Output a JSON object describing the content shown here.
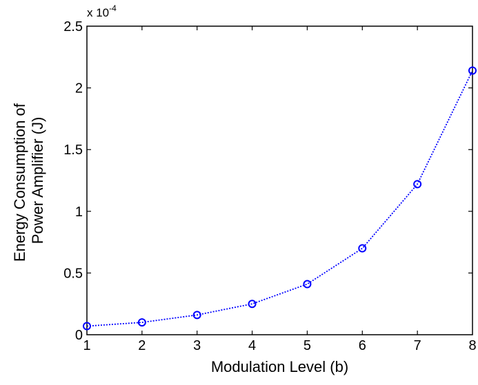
{
  "chart_data": {
    "type": "line",
    "title": "",
    "xlabel": "Modulation Level (b)",
    "ylabel_lines": [
      "Energy Consumption of",
      "Power Amplifier (J)"
    ],
    "y_scale_base": "x 10",
    "y_scale_exponent": "-4",
    "xlim": [
      1,
      8
    ],
    "ylim": [
      0,
      2.5
    ],
    "x_ticks": [
      1,
      2,
      3,
      4,
      5,
      6,
      7,
      8
    ],
    "x_tick_labels": [
      "1",
      "2",
      "3",
      "4",
      "5",
      "6",
      "7",
      "8"
    ],
    "y_ticks": [
      0,
      0.5,
      1,
      1.5,
      2,
      2.5
    ],
    "y_tick_labels": [
      "0",
      "0.5",
      "1",
      "1.5",
      "2",
      "2.5"
    ],
    "grid": false,
    "series": [
      {
        "color": "#0000ff",
        "line_style": "dotted",
        "marker": "circle",
        "x": [
          1,
          2,
          3,
          4,
          5,
          6,
          7,
          8
        ],
        "y": [
          0.07,
          0.1,
          0.16,
          0.25,
          0.41,
          0.7,
          1.22,
          2.14
        ]
      }
    ]
  }
}
